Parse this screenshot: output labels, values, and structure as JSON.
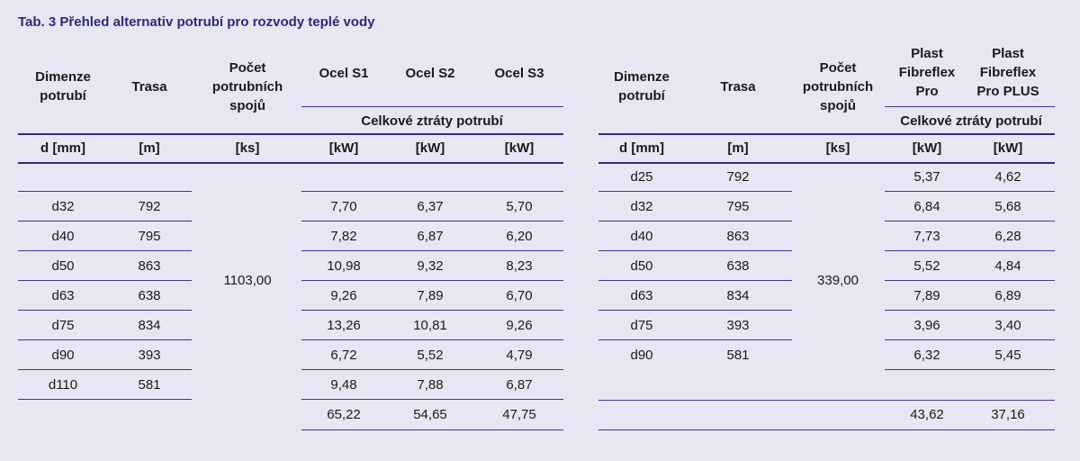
{
  "caption": "Tab. 3 Přehled alternativ potrubí pro rozvody teplé vody",
  "left": {
    "headers": {
      "dimenze": [
        "Dimenze",
        "potrubí"
      ],
      "trasa": "Trasa",
      "pocet": [
        "Počet",
        "potrubních",
        "spojů"
      ],
      "s1": "Ocel S1",
      "s2": "Ocel S2",
      "s3": "Ocel S3",
      "group": "Celkové ztráty potrubí"
    },
    "units": [
      "d [mm]",
      "[m]",
      "[ks]",
      "[kW]",
      "[kW]",
      "[kW]"
    ],
    "spoje": "1103,00",
    "rows": [
      {
        "d": "d32",
        "trasa": "792",
        "s1": "7,70",
        "s2": "6,37",
        "s3": "5,70"
      },
      {
        "d": "d40",
        "trasa": "795",
        "s1": "7,82",
        "s2": "6,87",
        "s3": "6,20"
      },
      {
        "d": "d50",
        "trasa": "863",
        "s1": "10,98",
        "s2": "9,32",
        "s3": "8,23"
      },
      {
        "d": "d63",
        "trasa": "638",
        "s1": "9,26",
        "s2": "7,89",
        "s3": "6,70"
      },
      {
        "d": "d75",
        "trasa": "834",
        "s1": "13,26",
        "s2": "10,81",
        "s3": "9,26"
      },
      {
        "d": "d90",
        "trasa": "393",
        "s1": "6,72",
        "s2": "5,52",
        "s3": "4,79"
      },
      {
        "d": "d110",
        "trasa": "581",
        "s1": "9,48",
        "s2": "7,88",
        "s3": "6,87"
      }
    ],
    "totals": {
      "s1": "65,22",
      "s2": "54,65",
      "s3": "47,75"
    }
  },
  "right": {
    "headers": {
      "dimenze": [
        "Dimenze",
        "potrubí"
      ],
      "trasa": "Trasa",
      "pocet": [
        "Počet",
        "potrubních",
        "spojů"
      ],
      "p1": [
        "Plast",
        "Fibreflex",
        "Pro"
      ],
      "p2": [
        "Plast",
        "Fibreflex",
        "Pro PLUS"
      ],
      "group": "Celkové ztráty potrubí"
    },
    "units": [
      "d [mm]",
      "[m]",
      "[ks]",
      "[kW]",
      "[kW]"
    ],
    "spoje": "339,00",
    "rows": [
      {
        "d": "d25",
        "trasa": "792",
        "p1": "5,37",
        "p2": "4,62"
      },
      {
        "d": "d32",
        "trasa": "795",
        "p1": "6,84",
        "p2": "5,68"
      },
      {
        "d": "d40",
        "trasa": "863",
        "p1": "7,73",
        "p2": "6,28"
      },
      {
        "d": "d50",
        "trasa": "638",
        "p1": "5,52",
        "p2": "4,84"
      },
      {
        "d": "d63",
        "trasa": "834",
        "p1": "7,89",
        "p2": "6,89"
      },
      {
        "d": "d75",
        "trasa": "393",
        "p1": "3,96",
        "p2": "3,40"
      },
      {
        "d": "d90",
        "trasa": "581",
        "p1": "6,32",
        "p2": "5,45"
      }
    ],
    "totals": {
      "p1": "43,62",
      "p2": "37,16"
    }
  }
}
